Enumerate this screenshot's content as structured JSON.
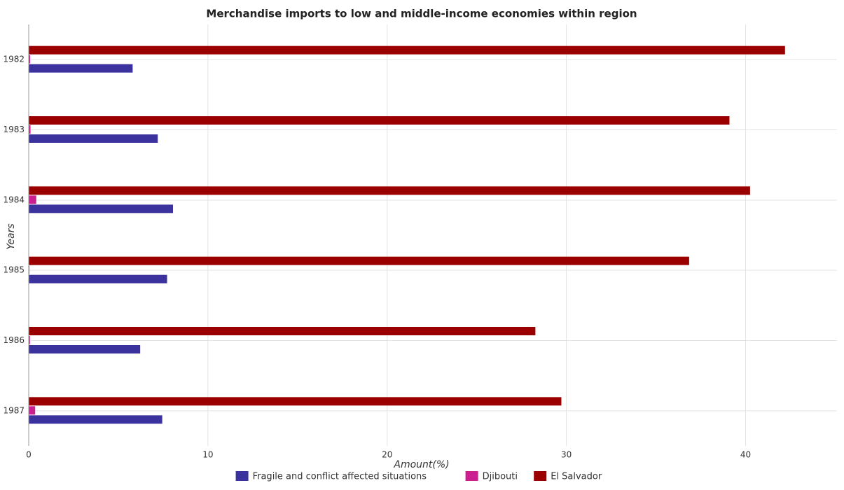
{
  "chart_data": {
    "type": "bar",
    "orientation": "horizontal",
    "title": "Merchandise imports to low and middle-income economies within region",
    "x_label": "Amount(%)",
    "y_label": "Years",
    "categories": [
      "1982",
      "1983",
      "1984",
      "1985",
      "1986",
      "1987"
    ],
    "series": [
      {
        "name": "Fragile and conflict affected situations",
        "color": "#3b329d",
        "values": [
          5.8,
          7.2,
          8.05,
          7.72,
          6.22,
          7.45
        ]
      },
      {
        "name": "Djibouti",
        "color": "#cc1f8f",
        "values": [
          0.08,
          0.1,
          0.42,
          0.04,
          0.07,
          0.36
        ]
      },
      {
        "name": "El Salvador",
        "color": "#9b0000",
        "values": [
          42.2,
          39.1,
          40.25,
          36.85,
          28.27,
          29.72
        ]
      }
    ],
    "xlim": [
      0,
      45.1
    ],
    "xticks": [
      0,
      10,
      20,
      30,
      40
    ],
    "grid": true,
    "legend": "bottom"
  }
}
